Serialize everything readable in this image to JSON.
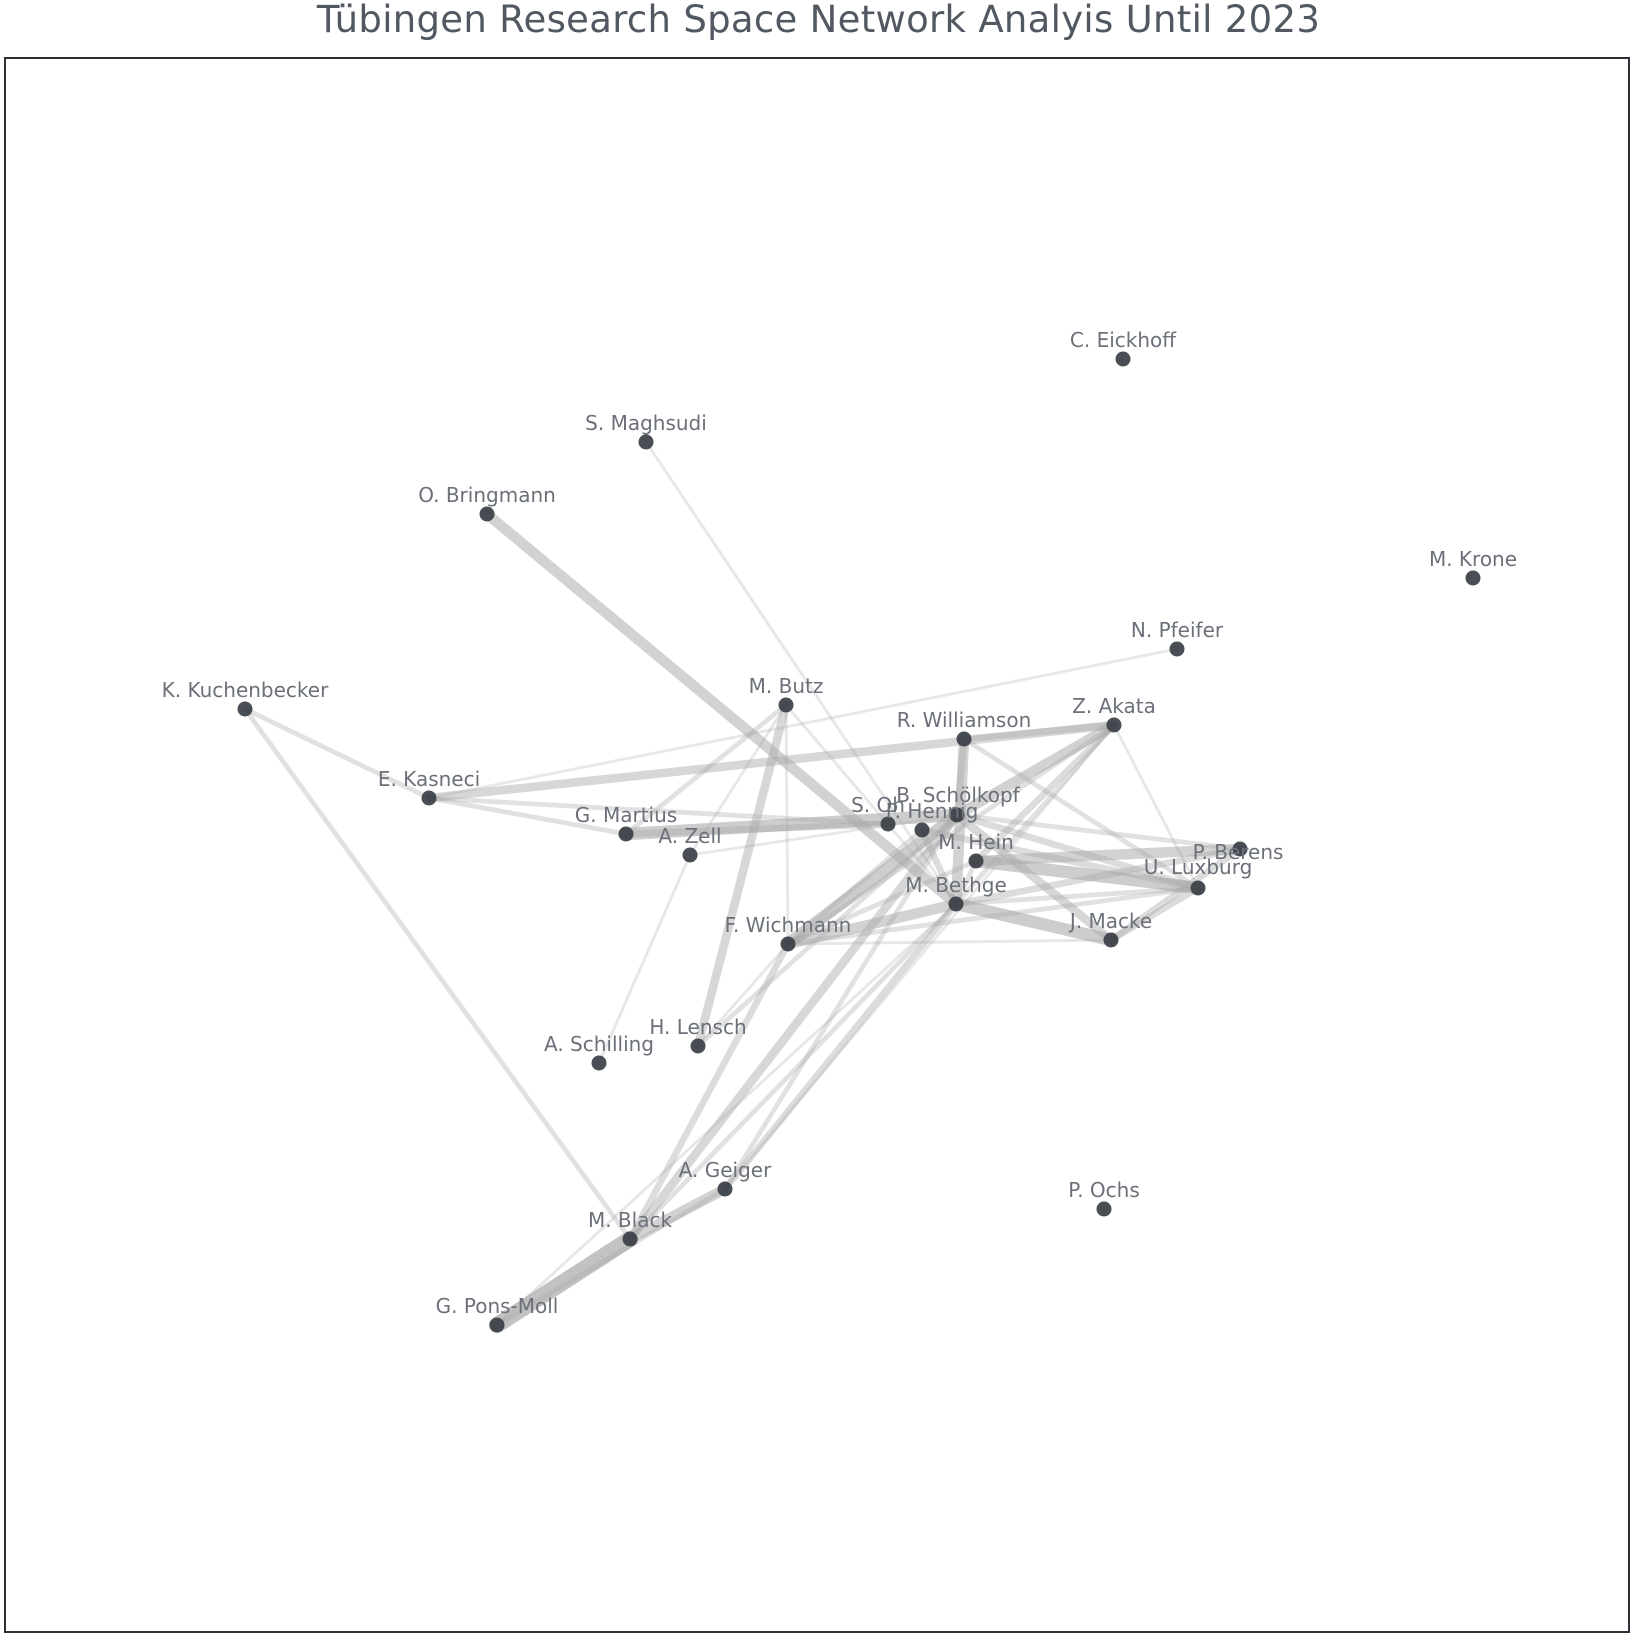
{
  "title": "Tübingen Research Space Network Analyis Until 2023",
  "colors": {
    "node": "#3a3f47",
    "edge": "#a8a8a8",
    "label": "#6b7079",
    "frame": "#2b2f36"
  },
  "nodes": [
    {
      "id": "c_eickhoff",
      "label": "C. Eickhoff"
    },
    {
      "id": "s_maghsudi",
      "label": "S. Maghsudi"
    },
    {
      "id": "o_bringmann",
      "label": "O. Bringmann"
    },
    {
      "id": "m_krone",
      "label": "M. Krone"
    },
    {
      "id": "n_pfeifer",
      "label": "N. Pfeifer"
    },
    {
      "id": "k_kuchenbecker",
      "label": "K. Kuchenbecker"
    },
    {
      "id": "m_butz",
      "label": "M. Butz"
    },
    {
      "id": "z_akata",
      "label": "Z. Akata"
    },
    {
      "id": "r_williamson",
      "label": "R. Williamson"
    },
    {
      "id": "e_kasneci",
      "label": "E. Kasneci"
    },
    {
      "id": "b_scholkopf",
      "label": "B. Schölkopf"
    },
    {
      "id": "s_oh",
      "label": "S. Oh"
    },
    {
      "id": "p_hennig",
      "label": "P. Hennig"
    },
    {
      "id": "g_martius",
      "label": "G. Martius"
    },
    {
      "id": "a_zell",
      "label": "A. Zell"
    },
    {
      "id": "m_hein",
      "label": "M. Hein"
    },
    {
      "id": "p_berens",
      "label": "P. Berens"
    },
    {
      "id": "u_luxburg",
      "label": "U. Luxburg"
    },
    {
      "id": "m_bethge",
      "label": "M. Bethge"
    },
    {
      "id": "j_macke",
      "label": "J. Macke"
    },
    {
      "id": "f_wichmann",
      "label": "F. Wichmann"
    },
    {
      "id": "h_lensch",
      "label": "H. Lensch"
    },
    {
      "id": "a_schilling",
      "label": "A. Schilling"
    },
    {
      "id": "a_geiger",
      "label": "A. Geiger"
    },
    {
      "id": "p_ochs",
      "label": "P. Ochs"
    },
    {
      "id": "m_black",
      "label": "M. Black"
    },
    {
      "id": "g_pons_moll",
      "label": "G. Pons-Moll"
    }
  ],
  "edges": [
    {
      "source": "s_maghsudi",
      "target": "m_bethge",
      "weight": 1
    },
    {
      "source": "o_bringmann",
      "target": "m_bethge",
      "weight": 5
    },
    {
      "source": "k_kuchenbecker",
      "target": "e_kasneci",
      "weight": 2
    },
    {
      "source": "k_kuchenbecker",
      "target": "m_black",
      "weight": 2
    },
    {
      "source": "e_kasneci",
      "target": "n_pfeifer",
      "weight": 1
    },
    {
      "source": "e_kasneci",
      "target": "z_akata",
      "weight": 4
    },
    {
      "source": "e_kasneci",
      "target": "s_oh",
      "weight": 2
    },
    {
      "source": "e_kasneci",
      "target": "g_martius",
      "weight": 2
    },
    {
      "source": "g_martius",
      "target": "m_butz",
      "weight": 2
    },
    {
      "source": "g_martius",
      "target": "b_scholkopf",
      "weight": 6
    },
    {
      "source": "g_martius",
      "target": "s_oh",
      "weight": 3
    },
    {
      "source": "a_zell",
      "target": "b_scholkopf",
      "weight": 1
    },
    {
      "source": "a_zell",
      "target": "a_schilling",
      "weight": 1
    },
    {
      "source": "a_zell",
      "target": "m_butz",
      "weight": 1
    },
    {
      "source": "m_butz",
      "target": "h_lensch",
      "weight": 4
    },
    {
      "source": "m_butz",
      "target": "f_wichmann",
      "weight": 1
    },
    {
      "source": "m_butz",
      "target": "m_bethge",
      "weight": 1
    },
    {
      "source": "r_williamson",
      "target": "m_bethge",
      "weight": 5
    },
    {
      "source": "r_williamson",
      "target": "u_luxburg",
      "weight": 2
    },
    {
      "source": "r_williamson",
      "target": "b_scholkopf",
      "weight": 3
    },
    {
      "source": "z_akata",
      "target": "b_scholkopf",
      "weight": 5
    },
    {
      "source": "z_akata",
      "target": "m_hein",
      "weight": 3
    },
    {
      "source": "z_akata",
      "target": "u_luxburg",
      "weight": 1
    },
    {
      "source": "z_akata",
      "target": "m_bethge",
      "weight": 2
    },
    {
      "source": "z_akata",
      "target": "f_wichmann",
      "weight": 2
    },
    {
      "source": "z_akata",
      "target": "a_geiger",
      "weight": 1
    },
    {
      "source": "z_akata",
      "target": "r_williamson",
      "weight": 3
    },
    {
      "source": "b_scholkopf",
      "target": "f_wichmann",
      "weight": 6
    },
    {
      "source": "b_scholkopf",
      "target": "p_berens",
      "weight": 2
    },
    {
      "source": "b_scholkopf",
      "target": "u_luxburg",
      "weight": 3
    },
    {
      "source": "b_scholkopf",
      "target": "j_macke",
      "weight": 4
    },
    {
      "source": "b_scholkopf",
      "target": "m_black",
      "weight": 4
    },
    {
      "source": "b_scholkopf",
      "target": "h_lensch",
      "weight": 2
    },
    {
      "source": "b_scholkopf",
      "target": "a_geiger",
      "weight": 2
    },
    {
      "source": "p_hennig",
      "target": "u_luxburg",
      "weight": 3
    },
    {
      "source": "p_hennig",
      "target": "m_bethge",
      "weight": 3
    },
    {
      "source": "p_hennig",
      "target": "f_wichmann",
      "weight": 2
    },
    {
      "source": "m_hein",
      "target": "p_berens",
      "weight": 5
    },
    {
      "source": "m_hein",
      "target": "u_luxburg",
      "weight": 6
    },
    {
      "source": "m_hein",
      "target": "m_bethge",
      "weight": 2
    },
    {
      "source": "m_hein",
      "target": "f_wichmann",
      "weight": 2
    },
    {
      "source": "m_bethge",
      "target": "p_berens",
      "weight": 3
    },
    {
      "source": "m_bethge",
      "target": "u_luxburg",
      "weight": 2
    },
    {
      "source": "m_bethge",
      "target": "j_macke",
      "weight": 6
    },
    {
      "source": "m_bethge",
      "target": "f_wichmann",
      "weight": 5
    },
    {
      "source": "m_bethge",
      "target": "a_geiger",
      "weight": 3
    },
    {
      "source": "m_bethge",
      "target": "m_black",
      "weight": 2
    },
    {
      "source": "m_bethge",
      "target": "g_pons_moll",
      "weight": 1
    },
    {
      "source": "j_macke",
      "target": "p_berens",
      "weight": 3
    },
    {
      "source": "j_macke",
      "target": "u_luxburg",
      "weight": 3
    },
    {
      "source": "j_macke",
      "target": "f_wichmann",
      "weight": 1
    },
    {
      "source": "f_wichmann",
      "target": "u_luxburg",
      "weight": 2
    },
    {
      "source": "f_wichmann",
      "target": "h_lensch",
      "weight": 1
    },
    {
      "source": "a_geiger",
      "target": "m_black",
      "weight": 5
    },
    {
      "source": "a_geiger",
      "target": "g_pons_moll",
      "weight": 2
    },
    {
      "source": "m_black",
      "target": "g_pons_moll",
      "weight": 8
    },
    {
      "source": "m_black",
      "target": "f_wichmann",
      "weight": 3
    }
  ]
}
